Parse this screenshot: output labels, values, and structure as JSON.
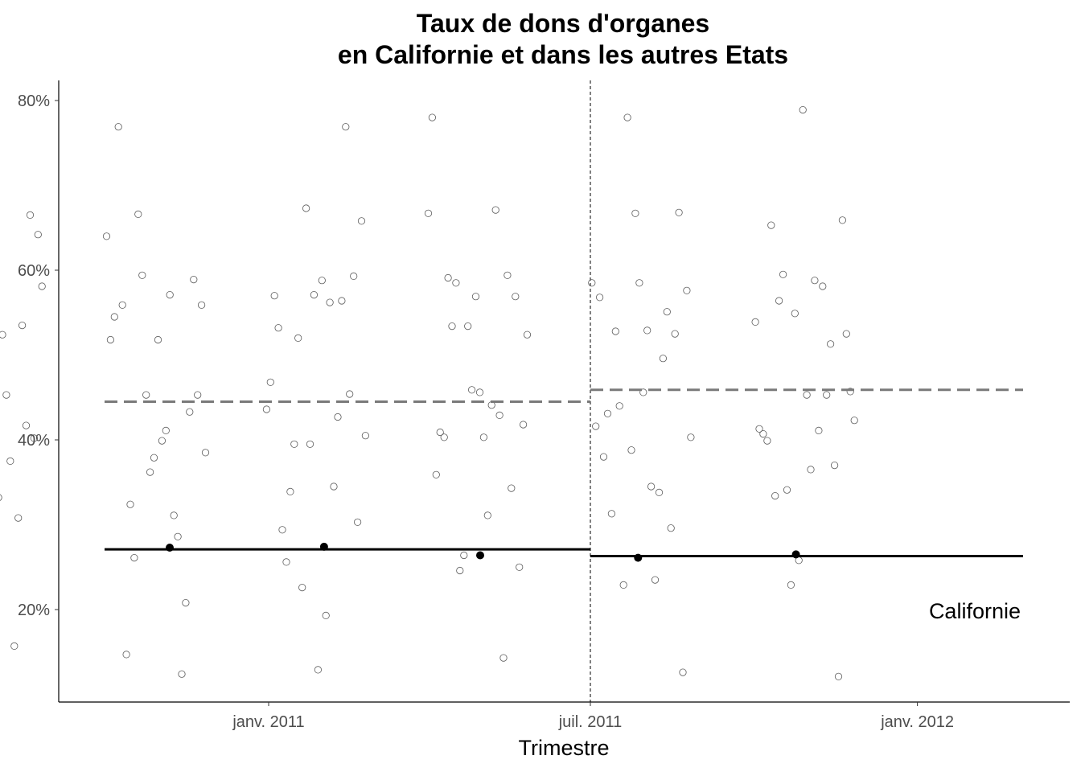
{
  "chart_data": {
    "type": "scatter",
    "title_lines": [
      "Taux de dons d'organes",
      "en Californie et dans les autres Etats"
    ],
    "xlabel": "Trimestre",
    "ylabel": "",
    "x_ticks": [
      "janv. 2011",
      "juil. 2011",
      "janv. 2012"
    ],
    "y_ticks": [
      "20%",
      "40%",
      "60%",
      "80%"
    ],
    "ylim": [
      0.09,
      0.82
    ],
    "grid": false,
    "quarters": [
      "2010-10-01",
      "2011-01-01",
      "2011-04-01",
      "2011-07-01",
      "2011-10-01",
      "2012-01-01"
    ],
    "treatment_date": "2011-07-01",
    "annotation": "Californie",
    "other_states": [
      {
        "quarter": "2010-10-01",
        "values": [
          0.594,
          0.557,
          0.665,
          0.263,
          0.157,
          0.124,
          0.332,
          0.581,
          0.554,
          0.417,
          0.454,
          0.375,
          0.264,
          0.749,
          0.642,
          0.573,
          0.535,
          0.327,
          0.453,
          0.463,
          0.537,
          0.402,
          0.392,
          0.308,
          0.303,
          0.524
        ]
      },
      {
        "quarter": "2011-01-01",
        "values": [
          0.362,
          0.589,
          0.261,
          0.286,
          0.769,
          0.399,
          0.385,
          0.453,
          0.433,
          0.324,
          0.311,
          0.545,
          0.518,
          0.559,
          0.594,
          0.208,
          0.147,
          0.571,
          0.518,
          0.379,
          0.453,
          0.666,
          0.124,
          0.559,
          0.411,
          0.64
        ]
      },
      {
        "quarter": "2011-04-01",
        "values": [
          0.593,
          0.395,
          0.427,
          0.532,
          0.588,
          0.405,
          0.673,
          0.454,
          0.339,
          0.345,
          0.57,
          0.129,
          0.658,
          0.226,
          0.769,
          0.256,
          0.562,
          0.468,
          0.571,
          0.303,
          0.52,
          0.564,
          0.294,
          0.193,
          0.436,
          0.395
        ]
      },
      {
        "quarter": "2011-07-01",
        "values": [
          0.585,
          0.429,
          0.409,
          0.403,
          0.524,
          0.534,
          0.343,
          0.534,
          0.671,
          0.359,
          0.456,
          0.418,
          0.264,
          0.594,
          0.591,
          0.441,
          0.78,
          0.569,
          0.25,
          0.246,
          0.143,
          0.403,
          0.311,
          0.667,
          0.459,
          0.569
        ]
      },
      {
        "quarter": "2011-10-01",
        "values": [
          0.496,
          0.38,
          0.529,
          0.403,
          0.388,
          0.525,
          0.528,
          0.338,
          0.568,
          0.456,
          0.576,
          0.78,
          0.296,
          0.313,
          0.235,
          0.416,
          0.585,
          0.126,
          0.229,
          0.551,
          0.431,
          0.345,
          0.585,
          0.667,
          0.668,
          0.44
        ]
      },
      {
        "quarter": "2012-01-01",
        "values": [
          0.399,
          0.365,
          0.423,
          0.549,
          0.121,
          0.564,
          0.581,
          0.407,
          0.453,
          0.457,
          0.229,
          0.37,
          0.334,
          0.411,
          0.413,
          0.789,
          0.525,
          0.341,
          0.513,
          0.653,
          0.588,
          0.539,
          0.258,
          0.659,
          0.595,
          0.453
        ]
      }
    ],
    "series": [
      {
        "name": "Californie",
        "x": [
          "2010-10-01",
          "2011-01-01",
          "2011-04-01",
          "2011-07-01",
          "2011-10-01",
          "2012-01-01"
        ],
        "values": [
          0.266,
          0.273,
          0.274,
          0.264,
          0.261,
          0.265
        ]
      }
    ],
    "mean_lines": {
      "other_states": [
        {
          "from": "2010-10-01",
          "to": "2011-07-01",
          "value": 0.445
        },
        {
          "from": "2011-07-01",
          "to": "2012-01-01",
          "value": 0.459
        }
      ],
      "california": [
        {
          "from": "2010-10-01",
          "to": "2011-07-01",
          "value": 0.271
        },
        {
          "from": "2011-07-01",
          "to": "2012-01-01",
          "value": 0.263
        }
      ]
    },
    "colors": {
      "other_points": "#5a5a5a",
      "california": "#000000",
      "other_mean_line": "#7a7a7a",
      "axis": "#000000",
      "tick_label": "#4d4d4d"
    }
  }
}
